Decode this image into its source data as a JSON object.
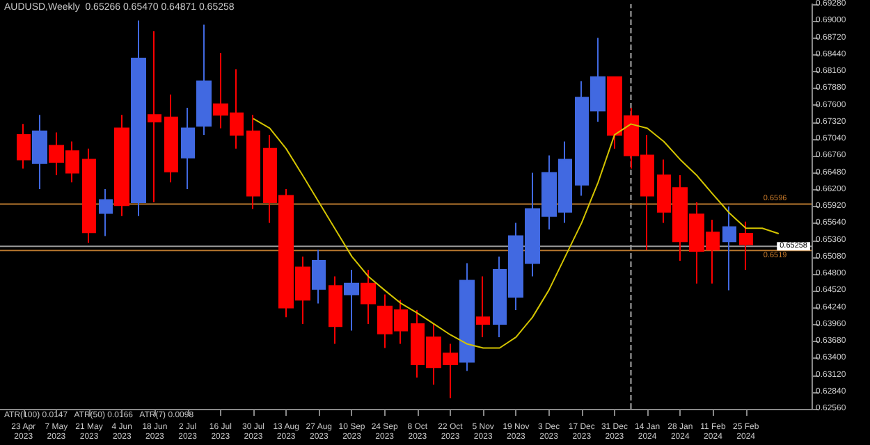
{
  "chart_data": {
    "type": "candlestick",
    "title": "AUDUSD,Weekly  0.65266 0.65470 0.64871 0.65258",
    "annotations": [
      "ATR(100) 0.0147   ATR(50) 0.0166   ATR(7) 0.0098"
    ],
    "x": [
      "2023-04-23",
      "2023-04-30",
      "2023-05-07",
      "2023-05-14",
      "2023-05-21",
      "2023-05-28",
      "2023-06-04",
      "2023-06-11",
      "2023-06-18",
      "2023-06-25",
      "2023-07-02",
      "2023-07-09",
      "2023-07-16",
      "2023-07-23",
      "2023-07-30",
      "2023-08-06",
      "2023-08-13",
      "2023-08-20",
      "2023-08-27",
      "2023-09-03",
      "2023-09-10",
      "2023-09-17",
      "2023-09-24",
      "2023-10-01",
      "2023-10-08",
      "2023-10-15",
      "2023-10-22",
      "2023-10-29",
      "2023-11-05",
      "2023-11-12",
      "2023-11-19",
      "2023-11-26",
      "2023-12-03",
      "2023-12-10",
      "2023-12-17",
      "2023-12-24",
      "2023-12-31",
      "2024-01-07",
      "2024-01-14",
      "2024-01-21",
      "2024-01-28",
      "2024-02-04",
      "2024-02-11",
      "2024-02-18",
      "2024-02-25"
    ],
    "ohlc": [
      [
        0.6711,
        0.6729,
        0.6655,
        0.667
      ],
      [
        0.6664,
        0.6744,
        0.6621,
        0.6717
      ],
      [
        0.6693,
        0.6715,
        0.6644,
        0.6666
      ],
      [
        0.6684,
        0.67,
        0.6632,
        0.6648
      ],
      [
        0.667,
        0.6688,
        0.6532,
        0.6549
      ],
      [
        0.6581,
        0.6621,
        0.6543,
        0.6603
      ],
      [
        0.6722,
        0.6744,
        0.6576,
        0.6594
      ],
      [
        0.6599,
        0.6901,
        0.6576,
        0.6838
      ],
      [
        0.6744,
        0.6883,
        0.6599,
        0.6733
      ],
      [
        0.674,
        0.6778,
        0.6632,
        0.665
      ],
      [
        0.6673,
        0.6756,
        0.6621,
        0.6722
      ],
      [
        0.6726,
        0.6894,
        0.6711,
        0.68
      ],
      [
        0.6762,
        0.6847,
        0.6722,
        0.6744
      ],
      [
        0.6747,
        0.682,
        0.6688,
        0.6711
      ],
      [
        0.6717,
        0.6744,
        0.6588,
        0.661
      ],
      [
        0.6688,
        0.6711,
        0.6565,
        0.6599
      ],
      [
        0.661,
        0.6621,
        0.6408,
        0.6424
      ],
      [
        0.6491,
        0.6509,
        0.6397,
        0.6437
      ],
      [
        0.6455,
        0.652,
        0.6431,
        0.6502
      ],
      [
        0.646,
        0.6476,
        0.6364,
        0.6393
      ],
      [
        0.6446,
        0.6487,
        0.6386,
        0.6464
      ],
      [
        0.6464,
        0.6487,
        0.6397,
        0.6431
      ],
      [
        0.6426,
        0.6446,
        0.6357,
        0.6381
      ],
      [
        0.642,
        0.6437,
        0.6364,
        0.6386
      ],
      [
        0.6397,
        0.642,
        0.6308,
        0.633
      ],
      [
        0.6375,
        0.6397,
        0.6296,
        0.6325
      ],
      [
        0.6348,
        0.6364,
        0.6274,
        0.633
      ],
      [
        0.6334,
        0.6498,
        0.6319,
        0.6469
      ],
      [
        0.6408,
        0.6476,
        0.6375,
        0.6397
      ],
      [
        0.6397,
        0.6509,
        0.6375,
        0.6487
      ],
      [
        0.6442,
        0.6565,
        0.642,
        0.6543
      ],
      [
        0.6498,
        0.6648,
        0.6476,
        0.6588
      ],
      [
        0.6576,
        0.6677,
        0.6554,
        0.6648
      ],
      [
        0.6583,
        0.67,
        0.6565,
        0.667
      ],
      [
        0.6628,
        0.68,
        0.661,
        0.6773
      ],
      [
        0.6751,
        0.6872,
        0.6733,
        0.6807
      ],
      [
        0.6807,
        0.6807,
        0.6688,
        0.6711
      ],
      [
        0.6742,
        0.6756,
        0.6655,
        0.6677
      ],
      [
        0.6677,
        0.6711,
        0.652,
        0.661
      ],
      [
        0.6644,
        0.667,
        0.6565,
        0.6583
      ],
      [
        0.6623,
        0.6644,
        0.6502,
        0.6534
      ],
      [
        0.6579,
        0.6599,
        0.6464,
        0.6518
      ],
      [
        0.6549,
        0.657,
        0.6464,
        0.652
      ],
      [
        0.6534,
        0.6592,
        0.6453,
        0.6558
      ],
      [
        0.6547,
        0.6567,
        0.6487,
        0.6529
      ]
    ],
    "colors": [
      "#ff0000",
      "#4169e1",
      "#ff0000",
      "#ff0000",
      "#ff0000",
      "#4169e1",
      "#ff0000",
      "#4169e1",
      "#ff0000",
      "#ff0000",
      "#4169e1",
      "#4169e1",
      "#ff0000",
      "#ff0000",
      "#ff0000",
      "#ff0000",
      "#ff0000",
      "#ff0000",
      "#4169e1",
      "#ff0000",
      "#4169e1",
      "#ff0000",
      "#ff0000",
      "#ff0000",
      "#ff0000",
      "#ff0000",
      "#ff0000",
      "#4169e1",
      "#ff0000",
      "#4169e1",
      "#4169e1",
      "#4169e1",
      "#4169e1",
      "#4169e1",
      "#4169e1",
      "#4169e1",
      "#ff0000",
      "#ff0000",
      "#ff0000",
      "#ff0000",
      "#ff0000",
      "#ff0000",
      "#ff0000",
      "#4169e1",
      "#ff0000"
    ],
    "series": [
      {
        "type": "line",
        "color": "#d4c400",
        "x": [
          "2023-07-30",
          "2023-08-06",
          "2023-08-13",
          "2023-08-20",
          "2023-08-27",
          "2023-09-03",
          "2023-09-10",
          "2023-09-17",
          "2023-09-24",
          "2023-10-01",
          "2023-10-08",
          "2023-10-15",
          "2023-10-22",
          "2023-10-29",
          "2023-11-05",
          "2023-11-12",
          "2023-11-19",
          "2023-11-26",
          "2023-12-03",
          "2023-12-10",
          "2023-12-17",
          "2023-12-24",
          "2023-12-31",
          "2024-01-07",
          "2024-01-14",
          "2024-01-21",
          "2024-01-28",
          "2024-02-04",
          "2024-02-11",
          "2024-02-18",
          "2024-02-25",
          "2024-03-03",
          "2024-03-10"
        ],
        "values": [
          0.6738,
          0.6722,
          0.6688,
          0.6644,
          0.6599,
          0.6554,
          0.6509,
          0.6476,
          0.6453,
          0.6431,
          0.6415,
          0.6397,
          0.6379,
          0.6364,
          0.6357,
          0.6357,
          0.6375,
          0.6408,
          0.6453,
          0.6509,
          0.6565,
          0.6632,
          0.6711,
          0.6729,
          0.6722,
          0.67,
          0.667,
          0.6644,
          0.6612,
          0.6581,
          0.6556,
          0.6556,
          0.6547
        ]
      }
    ],
    "marker": "none",
    "ref_lines": [
      {
        "axis": "x",
        "value": "2024-01-07",
        "label": null,
        "color": "#aaaaaa",
        "line_style": "dashed"
      },
      {
        "axis": "y",
        "value": 0.65258,
        "label": "0.65258",
        "color": "#9a9a9a",
        "line_style": "solid"
      },
      {
        "axis": "y",
        "value": 0.6596,
        "label": "0.6596",
        "color": "#b8782e",
        "line_style": "solid"
      },
      {
        "axis": "y",
        "value": 0.6519,
        "label": "0.6519",
        "color": "#b8782e",
        "line_style": "solid"
      }
    ],
    "xlim": [
      "2023-04-13",
      "2024-03-24"
    ],
    "xticks": [
      {
        "value": "2023-04-23",
        "label": "23 Apr 2023"
      },
      {
        "value": "2023-05-07",
        "label": "7 May 2023"
      },
      {
        "value": "2023-05-21",
        "label": "21 May 2023"
      },
      {
        "value": "2023-06-04",
        "label": "4 Jun 2023"
      },
      {
        "value": "2023-06-18",
        "label": "18 Jun 2023"
      },
      {
        "value": "2023-07-02",
        "label": "2 Jul 2023"
      },
      {
        "value": "2023-07-16",
        "label": "16 Jul 2023"
      },
      {
        "value": "2023-07-30",
        "label": "30 Jul 2023"
      },
      {
        "value": "2023-08-13",
        "label": "13 Aug 2023"
      },
      {
        "value": "2023-08-27",
        "label": "27 Aug 2023"
      },
      {
        "value": "2023-09-10",
        "label": "10 Sep 2023"
      },
      {
        "value": "2023-09-24",
        "label": "24 Sep 2023"
      },
      {
        "value": "2023-10-08",
        "label": "8 Oct 2023"
      },
      {
        "value": "2023-10-22",
        "label": "22 Oct 2023"
      },
      {
        "value": "2023-11-05",
        "label": "5 Nov 2023"
      },
      {
        "value": "2023-11-19",
        "label": "19 Nov 2023"
      },
      {
        "value": "2023-12-03",
        "label": "3 Dec 2023"
      },
      {
        "value": "2023-12-17",
        "label": "17 Dec 2023"
      },
      {
        "value": "2023-12-31",
        "label": "31 Dec 2023"
      },
      {
        "value": "2024-01-14",
        "label": "14 Jan 2024"
      },
      {
        "value": "2024-01-28",
        "label": "28 Jan 2024"
      },
      {
        "value": "2024-02-11",
        "label": "11 Feb 2024"
      },
      {
        "value": "2024-02-25",
        "label": "25 Feb 2024"
      }
    ],
    "ylim": [
      0.6256,
      0.6928
    ],
    "yticks": [
      {
        "value": 0.6256,
        "label": "0.62560"
      },
      {
        "value": 0.6284,
        "label": "0.62840"
      },
      {
        "value": 0.6312,
        "label": "0.63120"
      },
      {
        "value": 0.634,
        "label": "0.63400"
      },
      {
        "value": 0.6368,
        "label": "0.63680"
      },
      {
        "value": 0.6396,
        "label": "0.63960"
      },
      {
        "value": 0.6424,
        "label": "0.64240"
      },
      {
        "value": 0.6452,
        "label": "0.64520"
      },
      {
        "value": 0.648,
        "label": "0.64800"
      },
      {
        "value": 0.6508,
        "label": "0.65080"
      },
      {
        "value": 0.6536,
        "label": "0.65360"
      },
      {
        "value": 0.6564,
        "label": "0.65640"
      },
      {
        "value": 0.6592,
        "label": "0.65920"
      },
      {
        "value": 0.662,
        "label": "0.66200"
      },
      {
        "value": 0.6648,
        "label": "0.66480"
      },
      {
        "value": 0.6676,
        "label": "0.66760"
      },
      {
        "value": 0.6704,
        "label": "0.67040"
      },
      {
        "value": 0.6732,
        "label": "0.67320"
      },
      {
        "value": 0.676,
        "label": "0.67600"
      },
      {
        "value": 0.6788,
        "label": "0.67880"
      },
      {
        "value": 0.6816,
        "label": "0.68160"
      },
      {
        "value": 0.6844,
        "label": "0.68440"
      },
      {
        "value": 0.6872,
        "label": "0.68720"
      },
      {
        "value": 0.69,
        "label": "0.69000"
      },
      {
        "value": 0.6928,
        "label": "0.69280"
      }
    ],
    "grid": false
  }
}
